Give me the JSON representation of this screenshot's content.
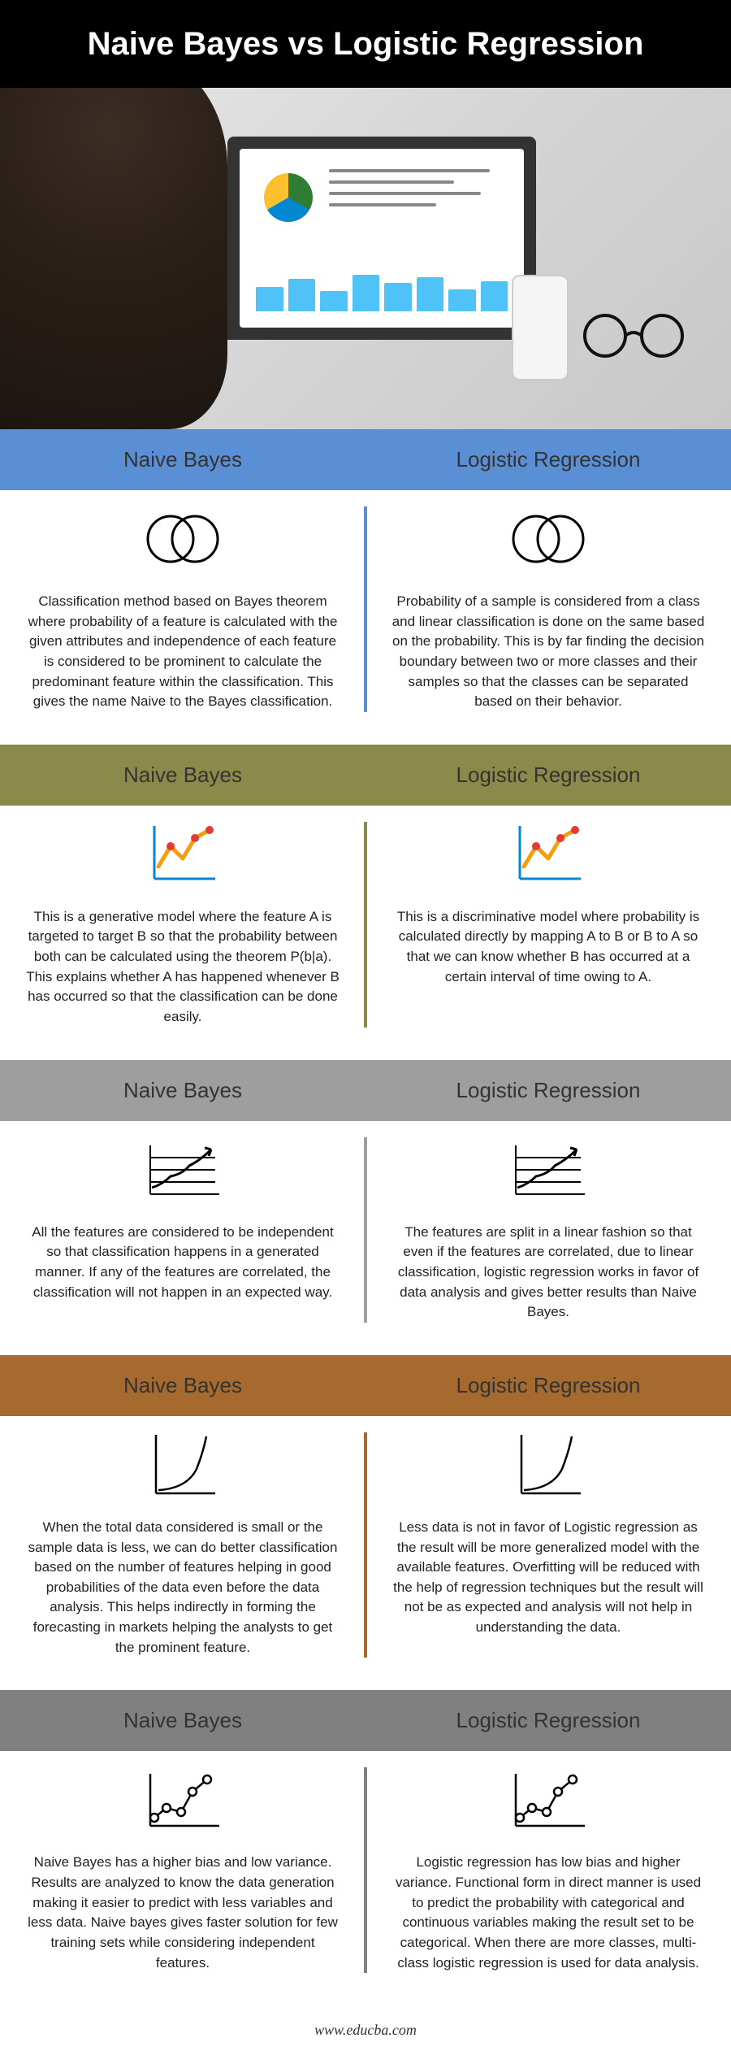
{
  "title": "Naive Bayes vs Logistic Regression",
  "columns": {
    "left": "Naive Bayes",
    "right": "Logistic Regression"
  },
  "footer": "www.educba.com",
  "sections": [
    {
      "header_bg": "#5a8fd6",
      "divider_color": "#5a8fd6",
      "icon": "venn",
      "nb": "Classification method based on Bayes theorem where probability of a feature is calculated with the given attributes and independence of each feature is considered to be prominent to calculate the predominant feature within the classification. This gives the name Naive to the Bayes classification.",
      "lr": "Probability of a sample is considered from a class and linear classification is done on the same based on the probability. This is by far finding the decision boundary between two or more classes and their samples so that the classes can be separated based on their behavior."
    },
    {
      "header_bg": "#8a8a4a",
      "divider_color": "#8a8a4a",
      "icon": "zigzag",
      "nb": "This is a generative model where the feature A is targeted to target B so that the probability between both can be calculated using the theorem P(b|a). This explains whether A has happened whenever B has occurred so that the classification can be done easily.",
      "lr": "This is a discriminative model where probability is calculated directly by mapping A to B or B to A so that we can know whether B has occurred at a certain interval of time owing to A."
    },
    {
      "header_bg": "#9e9e9e",
      "divider_color": "#9e9e9e",
      "icon": "growth-grid",
      "nb": "All the features are considered to be independent so that classification happens in a generated manner. If any of the features are correlated, the classification will not happen in an expected way.",
      "lr": "The features are split in a linear fashion so that even if the features are correlated, due to linear classification, logistic regression works in favor of data analysis and gives better results than Naive Bayes."
    },
    {
      "header_bg": "#a66a2e",
      "divider_color": "#a66a2e",
      "icon": "curve",
      "nb": "When the total data considered is small or the sample data is less, we can do better classification based on the number of features helping in good probabilities of the data even before the data analysis. This helps indirectly in forming the forecasting in markets helping the analysts to get the prominent feature.",
      "lr": "Less data is not in favor of Logistic regression as the result will be more generalized model with the available features. Overfitting will be reduced with the help of regression techniques but the result will not be as expected and analysis will not help in understanding the data."
    },
    {
      "header_bg": "#808080",
      "divider_color": "#808080",
      "icon": "scatter-line",
      "nb": "Naive Bayes has a higher bias and low variance. Results are analyzed to know the data generation making it easier to predict with less variables and less data. Naive bayes gives faster solution for few training sets while considering independent features.",
      "lr": "Logistic regression has low bias and higher variance. Functional form in direct manner is used to predict the probability with categorical and continuous variables making the result set to be categorical. When there are more classes, multi-class logistic regression is used for data analysis."
    }
  ],
  "icons": {
    "zigzag_colors": {
      "line": "#f59e0b",
      "dot": "#e53935",
      "axis": "#0288d1"
    },
    "curve_color": "#000",
    "grid_color": "#000"
  }
}
